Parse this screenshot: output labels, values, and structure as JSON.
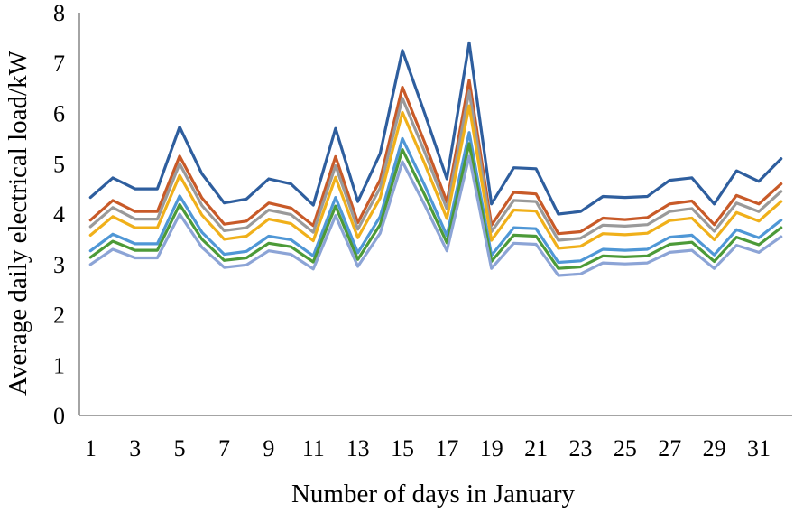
{
  "chart_data": {
    "type": "line",
    "title": "",
    "xlabel": "Number of days in January",
    "ylabel": "Average daily electrical load/kW",
    "x": [
      1,
      2,
      3,
      4,
      5,
      6,
      7,
      8,
      9,
      10,
      11,
      12,
      13,
      14,
      15,
      16,
      17,
      18,
      19,
      20,
      21,
      22,
      23,
      24,
      25,
      26,
      27,
      28,
      29,
      30,
      31,
      32
    ],
    "x_tick_labels": [
      "1",
      "3",
      "5",
      "7",
      "9",
      "11",
      "13",
      "15",
      "17",
      "19",
      "21",
      "23",
      "25",
      "27",
      "29",
      "31"
    ],
    "y_ticks": [
      "0",
      "1",
      "2",
      "3",
      "4",
      "5",
      "6",
      "7",
      "8"
    ],
    "ylim": [
      0,
      8
    ],
    "xlim": [
      0.5,
      32.5
    ],
    "grid": false,
    "legend": "none",
    "series": [
      {
        "color": "#2E5E9E",
        "values": [
          4.33,
          4.72,
          4.5,
          4.5,
          5.73,
          4.8,
          4.22,
          4.3,
          4.7,
          4.6,
          4.18,
          5.7,
          4.25,
          5.2,
          7.25,
          6.0,
          4.7,
          7.4,
          4.2,
          4.92,
          4.9,
          4.0,
          4.05,
          4.35,
          4.33,
          4.35,
          4.67,
          4.72,
          4.2,
          4.86,
          4.65,
          5.1
        ]
      },
      {
        "color": "#C85A28",
        "values": [
          3.88,
          4.27,
          4.05,
          4.05,
          5.15,
          4.32,
          3.8,
          3.86,
          4.22,
          4.12,
          3.77,
          5.14,
          3.83,
          4.68,
          6.52,
          5.42,
          4.24,
          6.66,
          3.78,
          4.43,
          4.4,
          3.61,
          3.65,
          3.92,
          3.89,
          3.93,
          4.2,
          4.26,
          3.79,
          4.37,
          4.2,
          4.6
        ]
      },
      {
        "color": "#9A9A9A",
        "values": [
          3.75,
          4.13,
          3.9,
          3.9,
          5.0,
          4.17,
          3.67,
          3.73,
          4.08,
          3.99,
          3.64,
          4.96,
          3.7,
          4.52,
          6.3,
          5.23,
          4.1,
          6.44,
          3.65,
          4.27,
          4.25,
          3.48,
          3.52,
          3.78,
          3.76,
          3.79,
          4.05,
          4.11,
          3.66,
          4.22,
          4.05,
          4.45
        ]
      },
      {
        "color": "#F0B01A",
        "values": [
          3.58,
          3.95,
          3.73,
          3.73,
          4.77,
          3.98,
          3.5,
          3.56,
          3.9,
          3.81,
          3.47,
          4.73,
          3.53,
          4.32,
          6.02,
          5.0,
          3.91,
          6.15,
          3.48,
          4.08,
          4.06,
          3.32,
          3.36,
          3.61,
          3.59,
          3.62,
          3.87,
          3.92,
          3.49,
          4.03,
          3.86,
          4.25
        ]
      },
      {
        "color": "#4F97D6",
        "values": [
          3.27,
          3.6,
          3.41,
          3.41,
          4.36,
          3.64,
          3.2,
          3.26,
          3.56,
          3.49,
          3.17,
          4.33,
          3.23,
          3.95,
          5.5,
          4.57,
          3.57,
          5.62,
          3.18,
          3.73,
          3.71,
          3.04,
          3.07,
          3.3,
          3.28,
          3.3,
          3.54,
          3.58,
          3.19,
          3.69,
          3.53,
          3.88
        ]
      },
      {
        "color": "#4C9A38",
        "values": [
          3.14,
          3.46,
          3.28,
          3.28,
          4.19,
          3.5,
          3.08,
          3.13,
          3.42,
          3.35,
          3.05,
          4.16,
          3.1,
          3.79,
          5.28,
          4.38,
          3.43,
          5.4,
          3.06,
          3.58,
          3.56,
          2.92,
          2.95,
          3.17,
          3.15,
          3.17,
          3.4,
          3.44,
          3.06,
          3.54,
          3.39,
          3.73
        ]
      },
      {
        "color": "#8CA4D6",
        "values": [
          3.0,
          3.3,
          3.13,
          3.13,
          4.0,
          3.34,
          2.94,
          2.99,
          3.27,
          3.2,
          2.91,
          3.97,
          2.96,
          3.62,
          5.04,
          4.18,
          3.27,
          5.15,
          2.92,
          3.42,
          3.4,
          2.78,
          2.81,
          3.03,
          3.01,
          3.03,
          3.24,
          3.28,
          2.92,
          3.38,
          3.24,
          3.55
        ]
      }
    ]
  }
}
